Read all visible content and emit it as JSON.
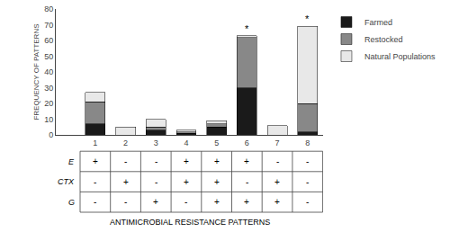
{
  "chart_data": {
    "type": "bar",
    "stacked": true,
    "categories": [
      "1",
      "2",
      "3",
      "4",
      "5",
      "6",
      "7",
      "8"
    ],
    "series": [
      {
        "name": "Farmed",
        "color": "#1a1a1a",
        "values": [
          7,
          0,
          3,
          1,
          5,
          30,
          0,
          2
        ]
      },
      {
        "name": "Restocked",
        "color": "#888888",
        "values": [
          14,
          0,
          2,
          1,
          2,
          32,
          0,
          18
        ]
      },
      {
        "name": "Natural Populations",
        "color": "#e8e8e8",
        "values": [
          6,
          5,
          5,
          1,
          2,
          1,
          6,
          49
        ]
      }
    ],
    "ylabel": "FREQUENCY OF PATTERNS",
    "xlabel": "ANTIMICROBIAL RESISTANCE PATTERNS",
    "ylim": [
      0,
      80
    ],
    "yticks": [
      0,
      10,
      20,
      30,
      40,
      50,
      60,
      70,
      80
    ],
    "grid": false,
    "legend": "right",
    "annotations": [
      {
        "category": "6",
        "text": "*"
      },
      {
        "category": "8",
        "text": "*"
      }
    ],
    "table": {
      "rows": [
        {
          "label": "E",
          "values": [
            "+",
            "-",
            "-",
            "+",
            "+",
            "+",
            "-",
            "-"
          ]
        },
        {
          "label": "CTX",
          "values": [
            "-",
            "+",
            "-",
            "+",
            "+",
            "-",
            "+",
            "-"
          ]
        },
        {
          "label": "G",
          "values": [
            "-",
            "-",
            "+",
            "-",
            "+",
            "+",
            "+",
            "-"
          ]
        }
      ]
    }
  }
}
